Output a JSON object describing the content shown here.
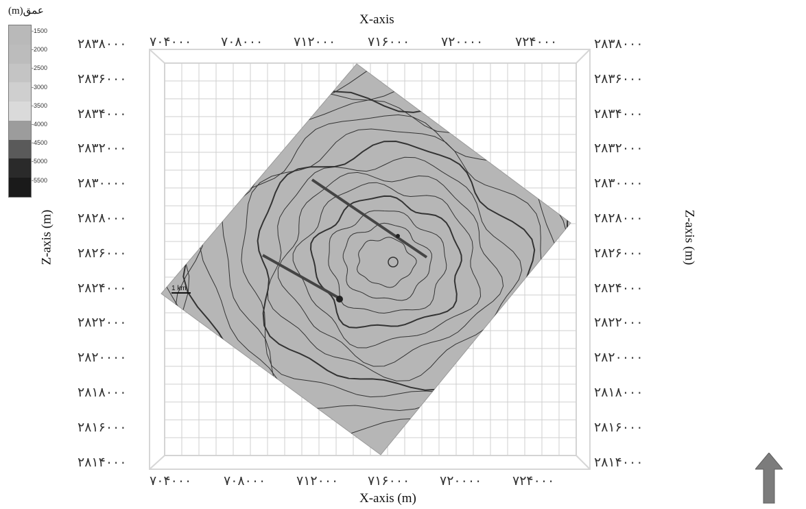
{
  "x_axis_title_top": "X-axis",
  "x_axis_title_bottom": "X-axis (m)",
  "z_axis_title_left": "Z-axis (m)",
  "z_axis_title_right": "Z-axis (m)",
  "x_ticks_top": [
    "۷۰۴۰۰۰",
    "۷۰۸۰۰۰",
    "۷۱۲۰۰۰",
    "۷۱۶۰۰۰",
    "۷۲۰۰۰۰",
    "۷۲۴۰۰۰"
  ],
  "x_ticks_bottom": [
    "۷۰۴۰۰۰",
    "۷۰۸۰۰۰",
    "۷۱۲۰۰۰",
    "۷۱۶۰۰۰",
    "۷۲۰۰۰۰",
    "۷۲۴۰۰۰"
  ],
  "z_ticks_left": [
    "۲۸۳۸۰۰۰",
    "۲۸۳۶۰۰۰",
    "۲۸۳۴۰۰۰",
    "۲۸۳۲۰۰۰",
    "۲۸۳۰۰۰۰",
    "۲۸۲۸۰۰۰",
    "۲۸۲۶۰۰۰",
    "۲۸۲۴۰۰۰",
    "۲۸۲۲۰۰۰",
    "۲۸۲۰۰۰۰",
    "۲۸۱۸۰۰۰",
    "۲۸۱۶۰۰۰",
    "۲۸۱۴۰۰۰"
  ],
  "z_ticks_right": [
    "۲۸۳۸۰۰۰",
    "۲۸۳۶۰۰۰",
    "۲۸۳۴۰۰۰",
    "۲۸۳۲۰۰۰",
    "۲۸۳۰۰۰۰",
    "۲۸۲۸۰۰۰",
    "۲۸۲۶۰۰۰",
    "۲۸۲۴۰۰۰",
    "۲۸۲۲۰۰۰",
    "۲۸۲۰۰۰۰",
    "۲۸۱۸۰۰۰",
    "۲۸۱۶۰۰۰",
    "۲۸۱۴۰۰۰"
  ],
  "legend": {
    "title": "(m)عمق",
    "ticks": [
      "-1500",
      "-2000",
      "-2500",
      "-3000",
      "-3500",
      "-4000",
      "-4500",
      "-5000",
      "-5500"
    ],
    "colors": [
      "#b9b9b9",
      "#bcbcbc",
      "#c4c4c4",
      "#cfcfcf",
      "#dadada",
      "#9c9c9c",
      "#5a5a5a",
      "#2a2a2a",
      "#1a1a1a"
    ]
  },
  "scale_bar_label": "1 km",
  "colors": {
    "surface_fill": "#b6b6b6",
    "contour": "#333333",
    "fault": "#444444",
    "grid": "#cfcfcf",
    "north_arrow": "#7c7c7c"
  }
}
